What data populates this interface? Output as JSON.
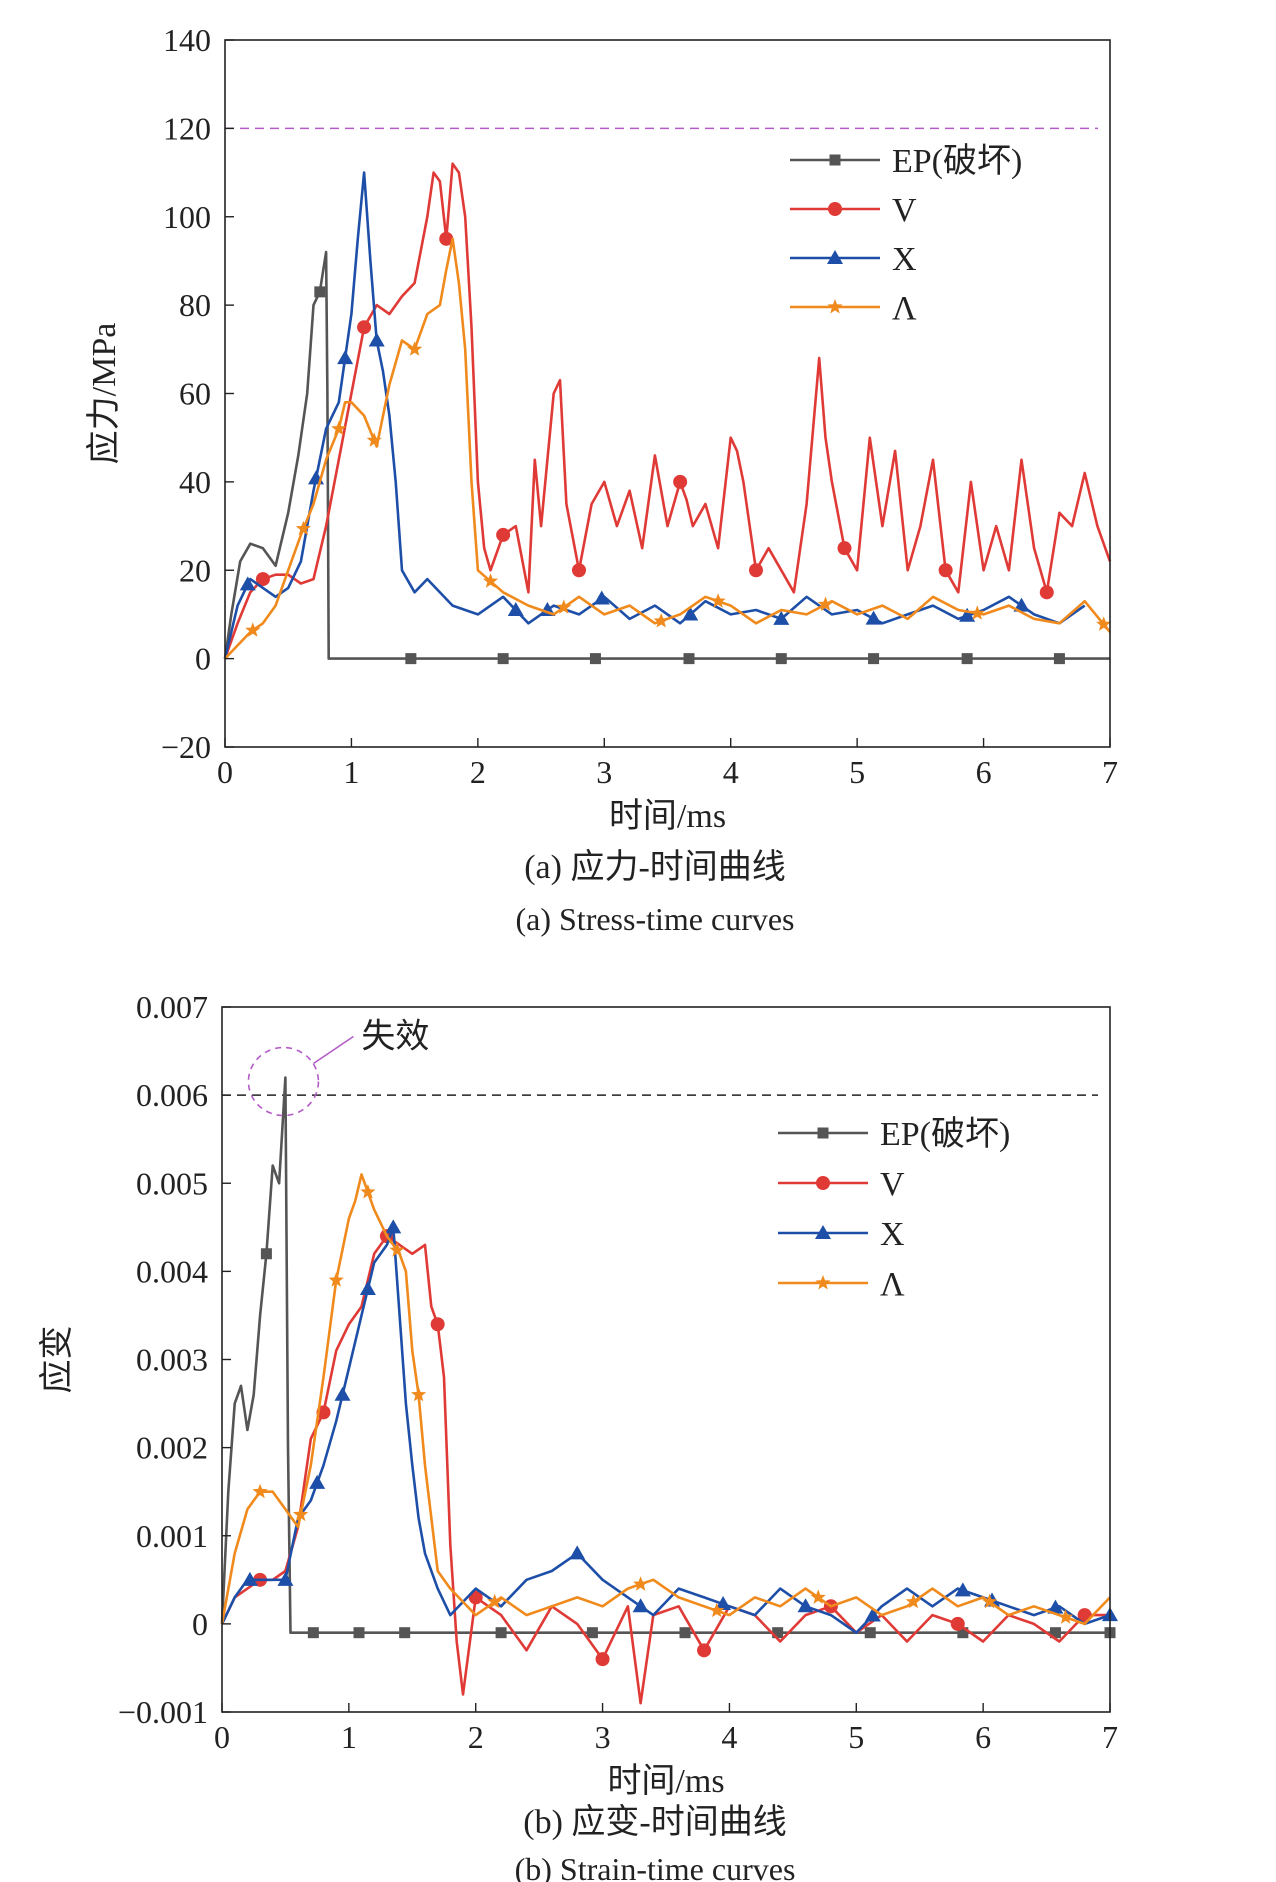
{
  "chart_data": [
    {
      "type": "line",
      "xlabel": "时间/ms",
      "ylabel": "应力/MPa",
      "xlim": [
        0,
        7
      ],
      "ylim": [
        -20,
        140
      ],
      "xticks": [
        "0",
        "1",
        "2",
        "3",
        "4",
        "5",
        "6",
        "7"
      ],
      "yticks": [
        "−20",
        "0",
        "20",
        "40",
        "60",
        "80",
        "100",
        "120",
        "140"
      ],
      "grid": false,
      "legend_position": "top-right",
      "caption_cn": "(a) 应力-时间曲线",
      "caption_en": "(a) Stress-time curves",
      "reference_line": {
        "y": 120,
        "color": "#b35cc6",
        "style": "dashed"
      },
      "series": [
        {
          "name": "EP(破坏)",
          "color": "#555555",
          "marker": "square",
          "x": [
            0,
            0.05,
            0.12,
            0.2,
            0.3,
            0.4,
            0.5,
            0.58,
            0.65,
            0.7,
            0.75,
            0.8,
            0.81,
            0.82,
            1.0,
            2.0,
            3.0,
            4.0,
            5.0,
            6.0,
            7.0
          ],
          "y": [
            0,
            10,
            22,
            26,
            25,
            21,
            33,
            46,
            60,
            80,
            83,
            92,
            60,
            0,
            0,
            0,
            0,
            0,
            0,
            0,
            0
          ],
          "marker_x": [
            0.75,
            1.47,
            2.2,
            2.93,
            3.67,
            4.4,
            5.13,
            5.87,
            6.6
          ]
        },
        {
          "name": "V",
          "color": "#e03a36",
          "marker": "circle",
          "x": [
            0,
            0.1,
            0.2,
            0.3,
            0.4,
            0.5,
            0.6,
            0.7,
            0.8,
            0.9,
            1.0,
            1.1,
            1.2,
            1.3,
            1.4,
            1.5,
            1.6,
            1.65,
            1.7,
            1.75,
            1.8,
            1.85,
            1.9,
            1.95,
            2.0,
            2.05,
            2.1,
            2.2,
            2.3,
            2.4,
            2.45,
            2.5,
            2.6,
            2.65,
            2.7,
            2.8,
            2.9,
            3.0,
            3.1,
            3.2,
            3.3,
            3.4,
            3.5,
            3.6,
            3.65,
            3.7,
            3.8,
            3.9,
            4.0,
            4.05,
            4.1,
            4.2,
            4.3,
            4.4,
            4.5,
            4.6,
            4.7,
            4.75,
            4.8,
            4.9,
            5.0,
            5.1,
            5.2,
            5.3,
            5.4,
            5.5,
            5.6,
            5.7,
            5.8,
            5.9,
            6.0,
            6.1,
            6.2,
            6.3,
            6.4,
            6.5,
            6.6,
            6.7,
            6.8,
            6.9,
            7.0
          ],
          "y": [
            0,
            8,
            15,
            18,
            19,
            19,
            17,
            18,
            30,
            45,
            60,
            75,
            80,
            78,
            82,
            85,
            100,
            110,
            108,
            95,
            112,
            110,
            100,
            75,
            40,
            25,
            20,
            28,
            30,
            15,
            45,
            30,
            60,
            63,
            35,
            20,
            35,
            40,
            30,
            38,
            25,
            46,
            30,
            40,
            36,
            30,
            35,
            25,
            50,
            47,
            40,
            20,
            25,
            20,
            15,
            35,
            68,
            50,
            40,
            25,
            20,
            50,
            30,
            47,
            20,
            30,
            45,
            20,
            15,
            40,
            20,
            30,
            20,
            45,
            25,
            15,
            33,
            30,
            42,
            30,
            22
          ]
        },
        {
          "name": "X",
          "color": "#1e4fa8",
          "marker": "triangle",
          "x": [
            0,
            0.1,
            0.2,
            0.3,
            0.4,
            0.5,
            0.6,
            0.7,
            0.8,
            0.9,
            0.95,
            1.0,
            1.05,
            1.1,
            1.15,
            1.2,
            1.25,
            1.3,
            1.35,
            1.4,
            1.5,
            1.6,
            1.8,
            2.0,
            2.2,
            2.4,
            2.6,
            2.8,
            3.0,
            3.2,
            3.4,
            3.6,
            3.8,
            4.0,
            4.2,
            4.4,
            4.6,
            4.8,
            5.0,
            5.2,
            5.4,
            5.6,
            5.8,
            6.0,
            6.2,
            6.4,
            6.6,
            6.8
          ],
          "y": [
            0,
            12,
            18,
            16,
            14,
            16,
            22,
            38,
            52,
            58,
            68,
            78,
            95,
            110,
            90,
            72,
            65,
            55,
            40,
            20,
            15,
            18,
            12,
            10,
            14,
            8,
            12,
            10,
            14,
            9,
            12,
            8,
            13,
            10,
            11,
            9,
            14,
            10,
            11,
            8,
            10,
            12,
            9,
            11,
            14,
            10,
            8,
            12
          ],
          "marker_x": [
            0.18,
            0.72,
            0.95,
            1.2,
            2.3,
            2.55,
            2.98,
            3.68,
            4.4,
            5.13,
            5.87,
            6.3
          ]
        },
        {
          "name": "Λ",
          "color": "#f08a1c",
          "marker": "star",
          "x": [
            0,
            0.1,
            0.2,
            0.3,
            0.4,
            0.5,
            0.6,
            0.7,
            0.8,
            0.9,
            0.95,
            1.0,
            1.1,
            1.2,
            1.3,
            1.4,
            1.5,
            1.6,
            1.7,
            1.75,
            1.8,
            1.85,
            1.9,
            1.95,
            2.0,
            2.2,
            2.4,
            2.6,
            2.8,
            3.0,
            3.2,
            3.4,
            3.6,
            3.8,
            4.0,
            4.2,
            4.4,
            4.6,
            4.8,
            5.0,
            5.2,
            5.4,
            5.6,
            5.8,
            6.0,
            6.2,
            6.4,
            6.6,
            6.8,
            7.0
          ],
          "y": [
            0,
            3,
            6,
            8,
            12,
            20,
            28,
            35,
            45,
            52,
            58,
            58,
            55,
            48,
            62,
            72,
            70,
            78,
            80,
            88,
            95,
            85,
            70,
            40,
            20,
            15,
            12,
            10,
            14,
            10,
            12,
            8,
            10,
            14,
            12,
            8,
            11,
            10,
            13,
            10,
            12,
            9,
            14,
            11,
            10,
            12,
            9,
            8,
            13,
            6
          ],
          "marker_x": [
            0.22,
            0.62,
            0.9,
            1.18,
            1.5,
            2.1,
            2.68,
            3.45,
            3.9,
            4.75,
            5.95,
            6.95
          ]
        }
      ]
    },
    {
      "type": "line",
      "xlabel": "时间/ms",
      "ylabel": "应变",
      "xlim": [
        0,
        7
      ],
      "ylim": [
        -0.001,
        0.007
      ],
      "xticks": [
        "0",
        "1",
        "2",
        "3",
        "4",
        "5",
        "6",
        "7"
      ],
      "yticks": [
        "−0.001",
        "0",
        "0.001",
        "0.002",
        "0.003",
        "0.004",
        "0.005",
        "0.006",
        "0.007"
      ],
      "grid": false,
      "legend_position": "top-right",
      "caption_cn": "(b) 应变-时间曲线",
      "caption_en": "(b) Strain-time curves",
      "reference_line": {
        "y": 0.006,
        "color": "#222222",
        "style": "dashed"
      },
      "annotation": {
        "text": "失效",
        "x": 0.5,
        "y": 0.0062
      },
      "series": [
        {
          "name": "EP(破坏)",
          "color": "#555555",
          "marker": "square",
          "x": [
            0,
            0.05,
            0.1,
            0.15,
            0.2,
            0.25,
            0.3,
            0.35,
            0.4,
            0.45,
            0.5,
            0.52,
            0.54,
            1.0,
            2.0,
            3.0,
            4.0,
            5.0,
            6.0,
            7.0
          ],
          "y": [
            0,
            0.0015,
            0.0025,
            0.0027,
            0.0022,
            0.0026,
            0.0035,
            0.0042,
            0.0052,
            0.005,
            0.0062,
            0.002,
            -0.0001,
            -0.0001,
            -0.0001,
            -0.0001,
            -0.0001,
            -0.0001,
            -0.0001,
            -0.0001
          ],
          "marker_x": [
            0.35,
            0.72,
            1.08,
            1.44,
            2.2,
            2.92,
            3.65,
            4.38,
            5.11,
            5.84,
            6.57,
            7.0
          ]
        },
        {
          "name": "V",
          "color": "#e03a36",
          "marker": "circle",
          "x": [
            0,
            0.1,
            0.2,
            0.3,
            0.4,
            0.5,
            0.6,
            0.7,
            0.8,
            0.9,
            1.0,
            1.1,
            1.2,
            1.3,
            1.4,
            1.5,
            1.6,
            1.65,
            1.7,
            1.75,
            1.8,
            1.85,
            1.9,
            2.0,
            2.2,
            2.4,
            2.6,
            2.8,
            3.0,
            3.2,
            3.3,
            3.4,
            3.6,
            3.8,
            4.0,
            4.2,
            4.4,
            4.6,
            4.8,
            5.0,
            5.2,
            5.4,
            5.6,
            5.8,
            6.0,
            6.2,
            6.4,
            6.6,
            6.8,
            7.0
          ],
          "y": [
            0,
            0.0003,
            0.0004,
            0.0005,
            0.0005,
            0.0006,
            0.0011,
            0.0021,
            0.0024,
            0.0031,
            0.0034,
            0.0036,
            0.0042,
            0.0044,
            0.0043,
            0.0042,
            0.0043,
            0.0036,
            0.0034,
            0.0028,
            0.0009,
            -0.0002,
            -0.0008,
            0.0003,
            0.0001,
            -0.0003,
            0.0002,
            0,
            -0.0004,
            0.0002,
            -0.0009,
            0.0001,
            0.0002,
            -0.0003,
            0.0002,
            0.0001,
            -0.0002,
            0.0001,
            0.0002,
            -0.0001,
            0.0001,
            -0.0002,
            0.0001,
            0,
            -0.0002,
            0.0001,
            0,
            -0.0002,
            0.0001,
            0.0001
          ]
        },
        {
          "name": "X",
          "color": "#1e4fa8",
          "marker": "triangle",
          "x": [
            0,
            0.1,
            0.2,
            0.3,
            0.4,
            0.5,
            0.6,
            0.7,
            0.8,
            0.9,
            1.0,
            1.1,
            1.2,
            1.3,
            1.35,
            1.4,
            1.45,
            1.5,
            1.55,
            1.6,
            1.7,
            1.8,
            2.0,
            2.2,
            2.4,
            2.6,
            2.8,
            3.0,
            3.2,
            3.4,
            3.6,
            3.8,
            4.0,
            4.2,
            4.4,
            4.6,
            4.8,
            5.0,
            5.2,
            5.4,
            5.6,
            5.8,
            6.0,
            6.2,
            6.4,
            6.6,
            6.8,
            7.0
          ],
          "y": [
            0,
            0.0003,
            0.0005,
            0.0005,
            0.0005,
            0.0005,
            0.0012,
            0.0014,
            0.0018,
            0.0023,
            0.0029,
            0.0035,
            0.0041,
            0.0043,
            0.0045,
            0.0035,
            0.0025,
            0.0018,
            0.0012,
            0.0008,
            0.0004,
            0.0001,
            0.0004,
            0.0002,
            0.0005,
            0.0006,
            0.0008,
            0.0005,
            0.0003,
            0.0001,
            0.0004,
            0.0003,
            0.0002,
            0.0001,
            0.0004,
            0.0002,
            0.0001,
            -0.0001,
            0.0002,
            0.0004,
            0.0002,
            0.0004,
            0.0003,
            0.0002,
            0.0001,
            0.0002,
            0,
            0.0001
          ],
          "marker_x": [
            0.22,
            0.5,
            0.75,
            0.95,
            1.15,
            1.35,
            2.8,
            3.3,
            3.95,
            4.6,
            5.13,
            5.84,
            6.07,
            6.57,
            7.0
          ]
        },
        {
          "name": "Λ",
          "color": "#f08a1c",
          "marker": "star",
          "x": [
            0,
            0.1,
            0.2,
            0.3,
            0.4,
            0.5,
            0.6,
            0.7,
            0.8,
            0.9,
            1.0,
            1.05,
            1.1,
            1.2,
            1.3,
            1.4,
            1.45,
            1.5,
            1.55,
            1.6,
            1.7,
            1.8,
            2.0,
            2.2,
            2.4,
            2.6,
            2.8,
            3.0,
            3.2,
            3.4,
            3.6,
            3.8,
            4.0,
            4.2,
            4.4,
            4.6,
            4.8,
            5.0,
            5.2,
            5.4,
            5.6,
            5.8,
            6.0,
            6.2,
            6.4,
            6.6,
            6.8,
            7.0
          ],
          "y": [
            0,
            0.0008,
            0.0013,
            0.0015,
            0.0015,
            0.0013,
            0.0011,
            0.0018,
            0.0028,
            0.0039,
            0.0046,
            0.0048,
            0.0051,
            0.0047,
            0.0044,
            0.0042,
            0.004,
            0.0031,
            0.0026,
            0.0018,
            0.0006,
            0.0004,
            0.0001,
            0.0003,
            0.0001,
            0.0002,
            0.0003,
            0.0002,
            0.0004,
            0.0005,
            0.0003,
            0.0002,
            0.0001,
            0.0003,
            0.0002,
            0.0004,
            0.0002,
            0.0003,
            0.0001,
            0.0002,
            0.0004,
            0.0002,
            0.0003,
            0.0001,
            0.0002,
            0.0001,
            0,
            0.0003
          ],
          "marker_x": [
            0.3,
            0.62,
            0.9,
            1.15,
            1.38,
            1.55,
            2.15,
            3.3,
            3.9,
            4.7,
            5.45,
            6.05,
            6.65
          ]
        }
      ]
    }
  ]
}
